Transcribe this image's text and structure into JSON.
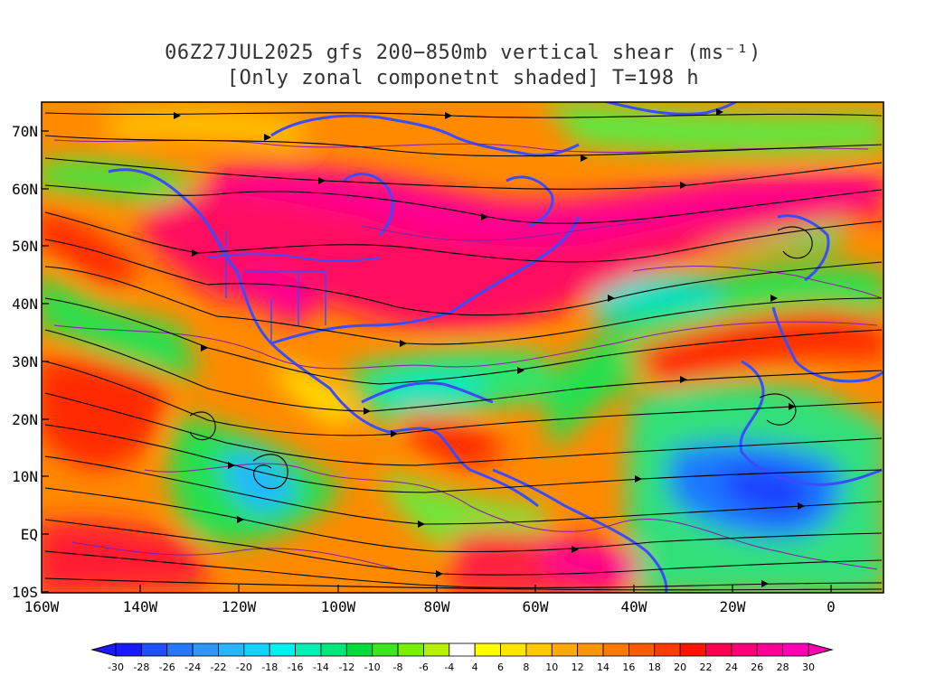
{
  "title": {
    "line1": "06Z27JUL2025 gfs 200−850mb vertical shear (ms⁻¹)",
    "line2": "[Only zonal componetnt shaded] T=198 h"
  },
  "map": {
    "lat_labels": [
      "70N",
      "60N",
      "50N",
      "40N",
      "30N",
      "20N",
      "10N",
      "EQ",
      "10S"
    ],
    "lon_labels": [
      "160W",
      "140W",
      "120W",
      "100W",
      "80W",
      "60W",
      "40W",
      "20W",
      "0"
    ],
    "shading_variable": "zonal vertical shear 200-850mb",
    "overlay": "wind shear streamlines",
    "coastline_color": "#3b4cff",
    "contour_color": "#8a1aa8"
  },
  "colorbar": {
    "labels": [
      "-30",
      "-28",
      "-26",
      "-24",
      "-22",
      "-20",
      "-18",
      "-16",
      "-14",
      "-12",
      "-10",
      "-8",
      "-6",
      "-4",
      "4",
      "6",
      "8",
      "10",
      "12",
      "14",
      "16",
      "18",
      "20",
      "22",
      "24",
      "26",
      "28",
      "30"
    ],
    "colors": [
      "#1a1aff",
      "#1e50ff",
      "#2878ff",
      "#3296ff",
      "#28b4ff",
      "#14d2ff",
      "#00f0f0",
      "#00f0b4",
      "#00e678",
      "#00dc3c",
      "#3ce61e",
      "#78f000",
      "#b4f000",
      "#ffffff",
      "#ffff00",
      "#ffe600",
      "#ffc800",
      "#ffaa00",
      "#ff9600",
      "#ff7800",
      "#ff5a00",
      "#ff3c00",
      "#ff1400",
      "#ff0050",
      "#ff0078",
      "#ff0096",
      "#ff00b4"
    ]
  }
}
